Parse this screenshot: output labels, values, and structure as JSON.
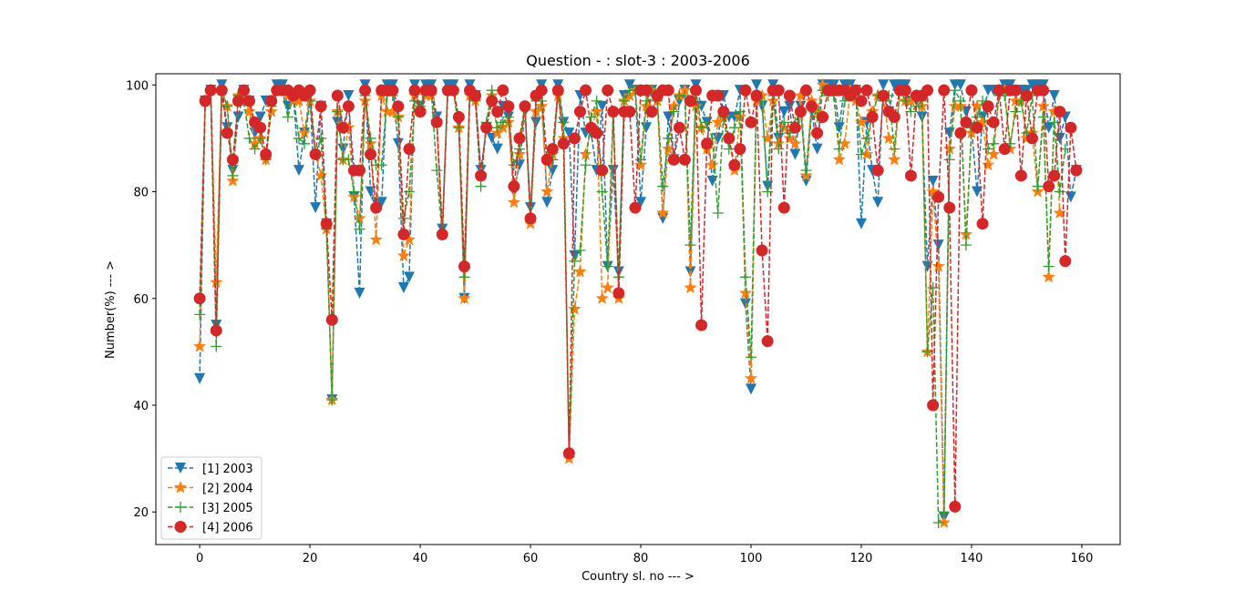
{
  "chart_data": {
    "type": "line",
    "title": "Question - : slot-3 : 2003-2006",
    "xlabel": "Country sl. no --- >",
    "ylabel": "Number(%) --- >",
    "xlim": [
      -7.95,
      166.95
    ],
    "ylim": [
      13.9,
      102.1
    ],
    "xticks": [
      0,
      20,
      40,
      60,
      80,
      100,
      120,
      140,
      160
    ],
    "yticks": [
      20,
      40,
      60,
      80,
      100
    ],
    "grid": false,
    "legend_position": "lower-left",
    "series": [
      {
        "name": "[1] 2003",
        "label": "[1] 2003",
        "color": "#1f77b4",
        "marker": "triangle-down",
        "values": [
          45,
          97,
          99,
          55,
          100,
          92,
          84,
          94,
          99,
          97,
          91,
          94,
          97,
          97,
          100,
          100,
          96,
          98,
          84,
          91,
          98,
          77,
          96,
          74,
          41,
          93,
          88,
          98,
          79,
          61,
          100,
          80,
          78,
          78,
          100,
          100,
          89,
          62,
          64,
          100,
          96,
          100,
          100,
          94,
          73,
          100,
          100,
          93,
          60,
          100,
          98,
          84,
          92,
          90,
          88,
          96,
          94,
          80,
          85,
          95,
          77,
          93,
          100,
          78,
          84,
          100,
          93,
          91,
          68,
          98,
          91,
          91,
          84,
          96,
          66,
          84,
          65,
          98,
          100,
          99,
          78,
          92,
          99,
          98,
          75,
          94,
          86,
          97,
          99,
          65,
          100,
          96,
          93,
          82,
          90,
          98,
          94,
          94,
          99,
          59,
          43,
          100,
          96,
          81,
          100,
          90,
          95,
          96,
          87,
          96,
          82,
          95,
          88,
          100,
          100,
          100,
          92,
          100,
          100,
          99,
          74,
          93,
          84,
          78,
          100,
          95,
          100,
          100,
          100,
          97,
          97,
          94,
          66,
          82,
          70,
          19,
          91,
          100,
          100,
          95,
          92,
          80,
          94,
          99,
          99,
          99,
          100,
          100,
          99,
          99,
          99,
          100,
          100,
          100,
          92,
          98,
          90,
          94,
          79,
          84
        ]
      },
      {
        "name": "[2] 2004",
        "label": "[2] 2004",
        "color": "#ff7f0e",
        "marker": "star",
        "values": [
          51,
          97,
          99,
          63,
          99,
          96,
          82,
          98,
          97,
          95,
          89,
          90,
          86,
          95,
          99,
          99,
          98,
          97,
          97,
          91,
          97,
          87,
          83,
          73,
          41,
          95,
          86,
          92,
          79,
          75,
          97,
          89,
          71,
          98,
          95,
          95,
          94,
          68,
          71,
          98,
          95,
          98,
          98,
          93,
          72,
          99,
          99,
          92,
          60,
          98,
          97,
          83,
          92,
          98,
          91,
          92,
          93,
          78,
          87,
          96,
          74,
          95,
          96,
          80,
          87,
          98,
          90,
          30,
          58,
          65,
          87,
          92,
          95,
          60,
          62,
          95,
          60,
          97,
          98,
          99,
          85,
          96,
          99,
          97,
          76,
          88,
          96,
          98,
          99,
          62,
          96,
          92,
          88,
          85,
          93,
          94,
          90,
          84,
          94,
          61,
          45,
          97,
          98,
          90,
          97,
          89,
          92,
          90,
          89,
          98,
          83,
          97,
          95,
          100,
          99,
          99,
          86,
          89,
          99,
          97,
          93,
          87,
          95,
          98,
          98,
          90,
          86,
          99,
          97,
          97,
          98,
          96,
          50,
          80,
          66,
          18,
          88,
          96,
          96,
          72,
          91,
          96,
          93,
          85,
          87,
          99,
          99,
          88,
          97,
          97,
          90,
          91,
          80,
          96,
          64,
          95,
          76
        ]
      },
      {
        "name": "[3] 2005",
        "label": "[3] 2005",
        "color": "#2ca02c",
        "marker": "plus",
        "values": [
          57,
          97,
          99,
          51,
          99,
          96,
          83,
          98,
          97,
          90,
          88,
          90,
          86,
          96,
          99,
          99,
          94,
          98,
          90,
          89,
          97,
          87,
          90,
          73,
          41,
          95,
          86,
          86,
          80,
          73,
          98,
          90,
          85,
          85,
          98,
          98,
          94,
          75,
          80,
          97,
          96,
          99,
          99,
          84,
          72,
          99,
          99,
          92,
          64,
          99,
          97,
          81,
          93,
          99,
          92,
          93,
          94,
          85,
          88,
          96,
          75,
          97,
          97,
          86,
          86,
          99,
          93,
          31,
          67,
          69,
          85,
          94,
          97,
          80,
          66,
          95,
          64,
          97,
          99,
          99,
          86,
          97,
          99,
          97,
          81,
          90,
          95,
          98,
          98,
          70,
          99,
          92,
          93,
          90,
          76,
          94,
          88,
          92,
          95,
          64,
          49,
          98,
          97,
          80,
          98,
          88,
          93,
          91,
          93,
          95,
          84,
          96,
          94,
          99,
          98,
          98,
          88,
          97,
          98,
          98,
          87,
          90,
          94,
          98,
          97,
          98,
          88,
          99,
          97,
          95,
          96,
          97,
          50,
          62,
          18,
          20,
          86,
          99,
          97,
          70,
          92,
          94,
          97,
          88,
          89,
          98,
          98,
          89,
          95,
          97,
          91,
          98,
          81,
          94,
          66,
          93,
          80,
          88
        ]
      },
      {
        "name": "[4] 2006",
        "label": "[4] 2006",
        "color": "#d62728",
        "marker": "circle",
        "values": [
          60,
          97,
          99,
          54,
          99,
          91,
          86,
          97,
          99,
          97,
          93,
          92,
          87,
          97,
          99,
          99,
          99,
          98,
          99,
          98,
          99,
          87,
          96,
          74,
          56,
          98,
          92,
          96,
          84,
          84,
          99,
          87,
          77,
          99,
          99,
          99,
          96,
          72,
          88,
          99,
          95,
          99,
          99,
          93,
          72,
          99,
          99,
          94,
          66,
          99,
          98,
          83,
          92,
          97,
          95,
          99,
          96,
          81,
          90,
          96,
          75,
          98,
          99,
          86,
          88,
          99,
          89,
          31,
          90,
          95,
          99,
          92,
          91,
          84,
          99,
          95,
          61,
          95,
          95,
          77,
          99,
          99,
          95,
          98,
          99,
          99,
          86,
          92,
          86,
          97,
          99,
          55,
          89,
          98,
          98,
          95,
          90,
          85,
          88,
          99,
          93,
          98,
          69,
          52,
          99,
          99,
          77,
          98,
          92,
          95,
          99,
          96,
          91,
          94,
          99,
          99,
          99,
          99,
          98,
          99,
          97,
          99,
          94,
          84,
          98,
          95,
          94,
          99,
          99,
          83,
          98,
          98,
          99,
          40,
          79,
          99,
          77,
          21,
          91,
          93,
          99,
          92,
          74,
          96,
          93,
          99,
          88,
          99,
          99,
          83,
          98,
          90,
          99,
          99,
          81,
          83,
          95,
          67,
          92,
          84
        ]
      }
    ]
  }
}
